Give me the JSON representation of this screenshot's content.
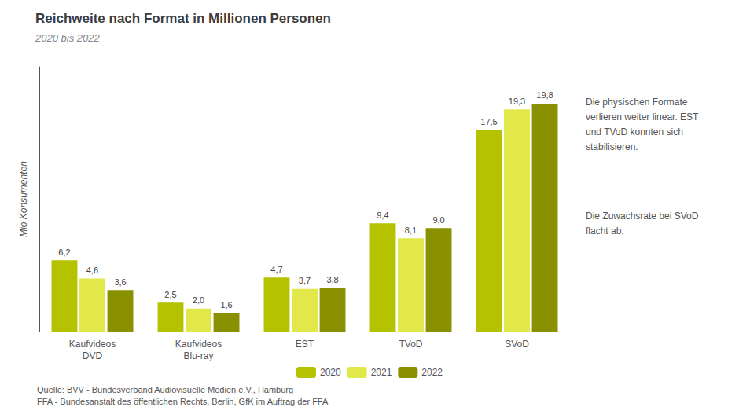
{
  "chart_data": {
    "type": "bar",
    "title": "Reichweite nach Format in Millionen Personen",
    "subtitle": "2020 bis 2022",
    "ylabel": "Mio Konsumenten",
    "categories": [
      "Kaufvideos\nDVD",
      "Kaufvideos\nBlu-ray",
      "EST",
      "TVoD",
      "SVoD"
    ],
    "series": [
      {
        "name": "2020",
        "color": "#b5c200",
        "values": [
          6.2,
          2.5,
          4.7,
          9.4,
          17.5
        ],
        "value_labels": [
          "6,2",
          "2,5",
          "4,7",
          "9,4",
          "17,5"
        ]
      },
      {
        "name": "2021",
        "color": "#e2e84a",
        "values": [
          4.6,
          2.0,
          3.7,
          8.1,
          19.3
        ],
        "value_labels": [
          "4,6",
          "2,0",
          "3,7",
          "8,1",
          "19,3"
        ]
      },
      {
        "name": "2022",
        "color": "#8a9100",
        "values": [
          3.6,
          1.6,
          3.8,
          9.0,
          19.8
        ],
        "value_labels": [
          "3,6",
          "1,6",
          "3,8",
          "9,0",
          "19,8"
        ]
      }
    ],
    "ylim": [
      0,
      23
    ],
    "tick_labels": "x",
    "grid": false,
    "legend": "bottom",
    "data_labels": true,
    "annotations": [
      "Die physischen Formate\nverlieren weiter linear. EST\nund TVoD konnten sich\nstabilisieren.",
      "Die Zuwachsrate bei SVoD\nflacht ab."
    ],
    "source": "Quelle: BVV - Bundesverband Audiovisuelle Medien e.V., Hamburg\nFFA - Bundesanstalt des öffentlichen Rechts, Berlin, GfK im Auftrag der FFA"
  }
}
